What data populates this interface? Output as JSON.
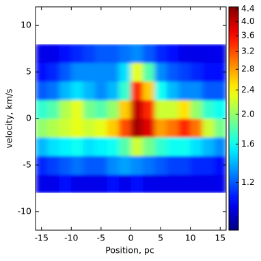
{
  "chart_data": {
    "type": "heatmap",
    "xlabel": "Position, pc",
    "ylabel": "velocity, km/s",
    "xlim": [
      -16,
      16
    ],
    "ylim": [
      -12,
      12
    ],
    "xticks": [
      -15,
      -10,
      -5,
      0,
      5,
      10,
      15
    ],
    "yticks": [
      -10,
      -5,
      0,
      5,
      10
    ],
    "x_bins": [
      -16,
      -14,
      -12,
      -10,
      -8,
      -6,
      -4,
      -2,
      0,
      2,
      4,
      6,
      8,
      10,
      12,
      14,
      16
    ],
    "y_bins": [
      -8,
      -6,
      -4,
      -2,
      0,
      2,
      4,
      6,
      8
    ],
    "z": [
      [
        1.0,
        1.0,
        1.05,
        1.0,
        1.0,
        1.0,
        1.05,
        1.0,
        1.05,
        1.0,
        1.0,
        1.0,
        1.0,
        1.0,
        1.0,
        1.0
      ],
      [
        1.1,
        1.15,
        1.2,
        1.25,
        1.2,
        1.2,
        1.3,
        1.35,
        1.3,
        1.25,
        1.2,
        1.15,
        1.15,
        1.1,
        1.1,
        1.05
      ],
      [
        1.4,
        1.5,
        1.55,
        1.6,
        1.5,
        1.55,
        1.6,
        1.8,
        2.2,
        1.9,
        1.7,
        1.6,
        1.6,
        1.5,
        1.4,
        1.3
      ],
      [
        2.0,
        2.1,
        2.2,
        2.3,
        2.2,
        2.3,
        2.6,
        3.2,
        4.2,
        3.8,
        2.8,
        3.0,
        3.4,
        3.0,
        2.2,
        1.9
      ],
      [
        1.7,
        1.8,
        2.1,
        2.3,
        1.9,
        1.8,
        2.0,
        2.6,
        4.0,
        3.4,
        2.2,
        2.2,
        2.5,
        2.0,
        1.7,
        1.6
      ],
      [
        1.2,
        1.25,
        1.4,
        1.5,
        1.4,
        1.3,
        1.4,
        1.7,
        3.4,
        2.6,
        1.6,
        1.4,
        1.3,
        1.3,
        1.2,
        1.2
      ],
      [
        1.05,
        1.1,
        1.2,
        1.3,
        1.3,
        1.3,
        1.3,
        1.5,
        2.3,
        1.8,
        1.3,
        1.2,
        1.15,
        1.1,
        1.05,
        1.05
      ],
      [
        1.0,
        1.0,
        1.05,
        1.1,
        1.15,
        1.2,
        1.2,
        1.25,
        1.3,
        1.2,
        1.1,
        1.05,
        1.0,
        1.0,
        1.0,
        1.0
      ]
    ],
    "colormap": "jet",
    "color_scale": "log",
    "clim": [
      0.84,
      4.47
    ],
    "cticks": [
      {
        "value": 1.2,
        "label": "1.2"
      },
      {
        "value": 1.6,
        "label": "1.6"
      },
      {
        "value": 2,
        "label": "2.0"
      },
      {
        "value": 2.4,
        "label": "2.4"
      },
      {
        "value": 2.8,
        "label": "2.8"
      },
      {
        "value": 3.2,
        "label": "3.2"
      },
      {
        "value": 3.6,
        "label": "3.6"
      },
      {
        "value": 4,
        "label": "4.0"
      },
      {
        "value": 4.4,
        "label": "4.4"
      }
    ]
  }
}
